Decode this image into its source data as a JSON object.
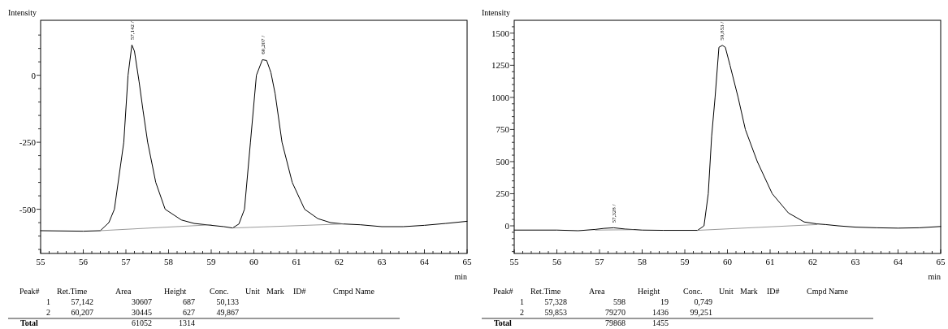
{
  "chart_data": [
    {
      "type": "line",
      "xlabel": "min",
      "ylabel": "Intensity",
      "grid": false,
      "marker": "none",
      "line_style": "solid",
      "xlim": [
        55,
        65
      ],
      "ylim": [
        -665,
        205
      ],
      "xticks": [
        55,
        {
          "value": 55.2,
          "label": null
        },
        {
          "value": 55.4,
          "label": null
        },
        {
          "value": 55.6,
          "label": null
        },
        {
          "value": 55.8,
          "label": null
        },
        56,
        {
          "value": 56.2,
          "label": null
        },
        {
          "value": 56.4,
          "label": null
        },
        {
          "value": 56.6,
          "label": null
        },
        {
          "value": 56.8,
          "label": null
        },
        57,
        {
          "value": 57.2,
          "label": null
        },
        {
          "value": 57.4,
          "label": null
        },
        {
          "value": 57.6,
          "label": null
        },
        {
          "value": 57.8,
          "label": null
        },
        58,
        {
          "value": 58.2,
          "label": null
        },
        {
          "value": 58.4,
          "label": null
        },
        {
          "value": 58.6,
          "label": null
        },
        {
          "value": 58.8,
          "label": null
        },
        59,
        {
          "value": 59.2,
          "label": null
        },
        {
          "value": 59.4,
          "label": null
        },
        {
          "value": 59.6,
          "label": null
        },
        {
          "value": 59.8,
          "label": null
        },
        60,
        {
          "value": 60.2,
          "label": null
        },
        {
          "value": 60.4,
          "label": null
        },
        {
          "value": 60.6,
          "label": null
        },
        {
          "value": 60.8,
          "label": null
        },
        61,
        {
          "value": 61.2,
          "label": null
        },
        {
          "value": 61.4,
          "label": null
        },
        {
          "value": 61.6,
          "label": null
        },
        {
          "value": 61.8,
          "label": null
        },
        62,
        {
          "value": 62.2,
          "label": null
        },
        {
          "value": 62.4,
          "label": null
        },
        {
          "value": 62.6,
          "label": null
        },
        {
          "value": 62.8,
          "label": null
        },
        63,
        {
          "value": 63.2,
          "label": null
        },
        {
          "value": 63.4,
          "label": null
        },
        {
          "value": 63.6,
          "label": null
        },
        {
          "value": 63.8,
          "label": null
        },
        64,
        {
          "value": 64.2,
          "label": null
        },
        {
          "value": 64.4,
          "label": null
        },
        {
          "value": 64.6,
          "label": null
        },
        {
          "value": 64.8,
          "label": null
        },
        65
      ],
      "yticks": [
        {
          "value": -650,
          "label": null
        },
        {
          "value": -600,
          "label": null
        },
        {
          "value": -550,
          "label": null
        },
        -500,
        {
          "value": -450,
          "label": null
        },
        {
          "value": -400,
          "label": null
        },
        {
          "value": -350,
          "label": null
        },
        {
          "value": -300,
          "label": null
        },
        -250,
        {
          "value": -200,
          "label": null
        },
        {
          "value": -150,
          "label": null
        },
        {
          "value": -100,
          "label": null
        },
        {
          "value": -50,
          "label": null
        },
        0,
        {
          "value": 50,
          "label": null
        },
        {
          "value": 100,
          "label": null
        },
        {
          "value": 150,
          "label": null
        }
      ],
      "series": [
        {
          "color": "#000000",
          "x": [
            55,
            56,
            56.4,
            56.6,
            56.73,
            56.95,
            57.05,
            57.14,
            57.2,
            57.31,
            57.4,
            57.51,
            57.7,
            57.92,
            58.3,
            58.6,
            59,
            59.3,
            59.5,
            59.65,
            59.78,
            59.92,
            60.06,
            60.2,
            60.3,
            60.4,
            60.5,
            60.66,
            60.9,
            61.19,
            61.5,
            61.8,
            62.1,
            62.5,
            63,
            63.5,
            64,
            64.5,
            65
          ],
          "values": [
            -580,
            -582,
            -580,
            -550,
            -500,
            -250,
            0,
            113,
            90,
            -25,
            -130,
            -250,
            -400,
            -500,
            -540,
            -553,
            -560,
            -565,
            -570,
            -555,
            -500,
            -250,
            0,
            58,
            55,
            10,
            -70,
            -250,
            -400,
            -500,
            -535,
            -550,
            -555,
            -558,
            -565,
            -565,
            -560,
            -553,
            -545
          ]
        },
        {
          "color": "#808080",
          "x": [
            56.4,
            59.0
          ],
          "values": [
            -580,
            -558
          ]
        },
        {
          "color": "#808080",
          "x": [
            59.5,
            62.1
          ],
          "values": [
            -570,
            -555
          ]
        }
      ],
      "annotations": [
        {
          "text": "57,142 /",
          "x": 57.142,
          "y": 113
        },
        {
          "text": "60,207 /",
          "x": 60.207,
          "y": 60
        },
        "Peak#",
        "Ret.Time",
        "Area",
        "Height",
        "Conc.",
        "Unit",
        "Mark",
        "ID#",
        "Cmpd Name",
        "1",
        "57,142",
        "30607",
        "687",
        "50,133",
        "2",
        "60,207",
        "30445",
        "627",
        "49,867",
        "Total",
        "61052",
        "1314"
      ]
    },
    {
      "type": "line",
      "xlabel": "min",
      "ylabel": "Intensity",
      "grid": false,
      "marker": "none",
      "line_style": "solid",
      "xlim": [
        55,
        65
      ],
      "ylim": [
        -215,
        1600
      ],
      "xticks": [
        55,
        {
          "value": 55.2,
          "label": null
        },
        {
          "value": 55.4,
          "label": null
        },
        {
          "value": 55.6,
          "label": null
        },
        {
          "value": 55.8,
          "label": null
        },
        56,
        {
          "value": 56.2,
          "label": null
        },
        {
          "value": 56.4,
          "label": null
        },
        {
          "value": 56.6,
          "label": null
        },
        {
          "value": 56.8,
          "label": null
        },
        57,
        {
          "value": 57.2,
          "label": null
        },
        {
          "value": 57.4,
          "label": null
        },
        {
          "value": 57.6,
          "label": null
        },
        {
          "value": 57.8,
          "label": null
        },
        58,
        {
          "value": 58.2,
          "label": null
        },
        {
          "value": 58.4,
          "label": null
        },
        {
          "value": 58.6,
          "label": null
        },
        {
          "value": 58.8,
          "label": null
        },
        59,
        {
          "value": 59.2,
          "label": null
        },
        {
          "value": 59.4,
          "label": null
        },
        {
          "value": 59.6,
          "label": null
        },
        {
          "value": 59.8,
          "label": null
        },
        60,
        {
          "value": 60.2,
          "label": null
        },
        {
          "value": 60.4,
          "label": null
        },
        {
          "value": 60.6,
          "label": null
        },
        {
          "value": 60.8,
          "label": null
        },
        61,
        {
          "value": 61.2,
          "label": null
        },
        {
          "value": 61.4,
          "label": null
        },
        {
          "value": 61.6,
          "label": null
        },
        {
          "value": 61.8,
          "label": null
        },
        62,
        {
          "value": 62.2,
          "label": null
        },
        {
          "value": 62.4,
          "label": null
        },
        {
          "value": 62.6,
          "label": null
        },
        {
          "value": 62.8,
          "label": null
        },
        63,
        {
          "value": 63.2,
          "label": null
        },
        {
          "value": 63.4,
          "label": null
        },
        {
          "value": 63.6,
          "label": null
        },
        {
          "value": 63.8,
          "label": null
        },
        64,
        {
          "value": 64.2,
          "label": null
        },
        {
          "value": 64.4,
          "label": null
        },
        {
          "value": 64.6,
          "label": null
        },
        {
          "value": 64.8,
          "label": null
        },
        65
      ],
      "yticks": [
        {
          "value": -200,
          "label": null
        },
        {
          "value": -150,
          "label": null
        },
        {
          "value": -100,
          "label": null
        },
        {
          "value": -50,
          "label": null
        },
        0,
        {
          "value": 50,
          "label": null
        },
        {
          "value": 100,
          "label": null
        },
        {
          "value": 150,
          "label": null
        },
        {
          "value": 200,
          "label": null
        },
        250,
        {
          "value": 300,
          "label": null
        },
        {
          "value": 350,
          "label": null
        },
        {
          "value": 400,
          "label": null
        },
        {
          "value": 450,
          "label": null
        },
        500,
        {
          "value": 550,
          "label": null
        },
        {
          "value": 600,
          "label": null
        },
        {
          "value": 650,
          "label": null
        },
        {
          "value": 700,
          "label": null
        },
        750,
        {
          "value": 800,
          "label": null
        },
        {
          "value": 850,
          "label": null
        },
        {
          "value": 900,
          "label": null
        },
        {
          "value": 950,
          "label": null
        },
        1000,
        {
          "value": 1050,
          "label": null
        },
        {
          "value": 1100,
          "label": null
        },
        {
          "value": 1150,
          "label": null
        },
        {
          "value": 1200,
          "label": null
        },
        1250,
        {
          "value": 1300,
          "label": null
        },
        {
          "value": 1350,
          "label": null
        },
        {
          "value": 1400,
          "label": null
        },
        {
          "value": 1450,
          "label": null
        },
        1500,
        {
          "value": 1550,
          "label": null
        }
      ],
      "series": [
        {
          "color": "#000000",
          "x": [
            55,
            56,
            56.5,
            56.9,
            57.1,
            57.33,
            57.6,
            58,
            58.5,
            59,
            59.3,
            59.45,
            59.55,
            59.63,
            59.71,
            59.8,
            59.88,
            59.95,
            60.06,
            60.25,
            60.42,
            60.7,
            61.05,
            61.43,
            61.8,
            62.1,
            62.3,
            62.6,
            63,
            63.5,
            64,
            64.5,
            65
          ],
          "values": [
            -33,
            -33,
            -38,
            -28,
            -20,
            -15,
            -25,
            -33,
            -35,
            -35,
            -35,
            0,
            250,
            700,
            1000,
            1390,
            1405,
            1390,
            1250,
            1000,
            750,
            500,
            250,
            100,
            30,
            15,
            10,
            0,
            -10,
            -15,
            -18,
            -15,
            -5
          ]
        },
        {
          "color": "#808080",
          "x": [
            56.9,
            57.8
          ],
          "values": [
            -33,
            -30
          ]
        },
        {
          "color": "#808080",
          "x": [
            59.3,
            62.1
          ],
          "values": [
            -35,
            10
          ]
        }
      ],
      "annotations": [
        {
          "text": "57,328 /",
          "x": 57.328,
          "y": -15
        },
        {
          "text": "59,853 /",
          "x": 59.853,
          "y": 1405
        },
        "Peak#",
        "Ret.Time",
        "Area",
        "Height",
        "Conc.",
        "Unit",
        "Mark",
        "ID#",
        "Cmpd Name",
        "1",
        "57,328",
        "598",
        "19",
        "0,749",
        "2",
        "59,853",
        "79270",
        "1436",
        "99,251",
        "Total",
        "79868",
        "1455"
      ]
    }
  ]
}
